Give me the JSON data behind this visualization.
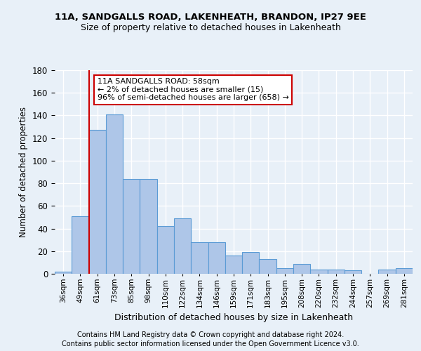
{
  "title1": "11A, SANDGALLS ROAD, LAKENHEATH, BRANDON, IP27 9EE",
  "title2": "Size of property relative to detached houses in Lakenheath",
  "xlabel": "Distribution of detached houses by size in Lakenheath",
  "ylabel": "Number of detached properties",
  "categories": [
    "36sqm",
    "49sqm",
    "61sqm",
    "73sqm",
    "85sqm",
    "98sqm",
    "110sqm",
    "122sqm",
    "134sqm",
    "146sqm",
    "159sqm",
    "171sqm",
    "183sqm",
    "195sqm",
    "208sqm",
    "220sqm",
    "232sqm",
    "244sqm",
    "257sqm",
    "269sqm",
    "281sqm"
  ],
  "values": [
    2,
    51,
    127,
    141,
    84,
    84,
    42,
    49,
    28,
    28,
    16,
    19,
    13,
    5,
    9,
    4,
    4,
    3,
    0,
    4,
    5
  ],
  "bar_color": "#aec6e8",
  "bar_edge_color": "#5b9bd5",
  "background_color": "#e8f0f8",
  "grid_color": "#ffffff",
  "vline_color": "#cc0000",
  "annotation_text": "11A SANDGALLS ROAD: 58sqm\n← 2% of detached houses are smaller (15)\n96% of semi-detached houses are larger (658) →",
  "annotation_box_color": "#cc0000",
  "footnote1": "Contains HM Land Registry data © Crown copyright and database right 2024.",
  "footnote2": "Contains public sector information licensed under the Open Government Licence v3.0.",
  "ylim": [
    0,
    180
  ]
}
